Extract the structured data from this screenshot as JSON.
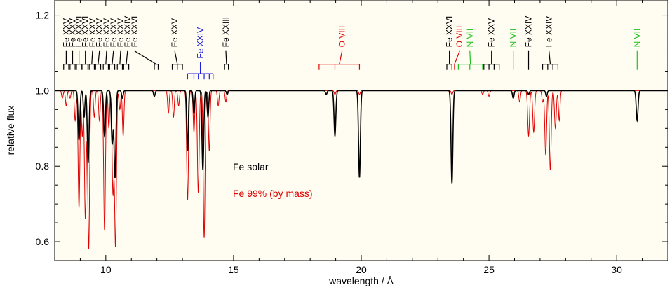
{
  "chart_data": {
    "type": "line",
    "xlabel": "wavelength / Å",
    "ylabel": "relative flux",
    "xlim": [
      8,
      32
    ],
    "ylim": [
      0.55,
      1.24
    ],
    "xticks": [
      10,
      15,
      20,
      25,
      30
    ],
    "xtick_labels": [
      "10",
      "15",
      "20",
      "25",
      "30"
    ],
    "yticks": [
      0.6,
      0.8,
      1.0,
      1.2
    ],
    "ytick_labels": [
      "0.6",
      "0.8",
      "1.0",
      "1.2"
    ],
    "background": "#fffdf2",
    "legend": [
      {
        "text": "Fe solar",
        "color": "#000000"
      },
      {
        "text": "Fe 99% (by mass)",
        "color": "#e00000"
      }
    ],
    "series": [
      {
        "color": "#000000",
        "continuum": 1.0,
        "lines": [
          {
            "x": 8.95,
            "depth": 0.13,
            "w": 0.035
          },
          {
            "x": 9.15,
            "depth": 0.07,
            "w": 0.03
          },
          {
            "x": 9.31,
            "depth": 0.19,
            "w": 0.035
          },
          {
            "x": 9.95,
            "depth": 0.12,
            "w": 0.035
          },
          {
            "x": 10.25,
            "depth": 0.14,
            "w": 0.035
          },
          {
            "x": 10.36,
            "depth": 0.23,
            "w": 0.035
          },
          {
            "x": 10.65,
            "depth": 0.02,
            "w": 0.03
          },
          {
            "x": 11.9,
            "depth": 0.015,
            "w": 0.03
          },
          {
            "x": 13.2,
            "depth": 0.16,
            "w": 0.03
          },
          {
            "x": 13.45,
            "depth": 0.06,
            "w": 0.03
          },
          {
            "x": 13.8,
            "depth": 0.21,
            "w": 0.035
          },
          {
            "x": 14.0,
            "depth": 0.07,
            "w": 0.03
          },
          {
            "x": 14.75,
            "depth": 0.01,
            "w": 0.03
          },
          {
            "x": 18.63,
            "depth": 0.01,
            "w": 0.03
          },
          {
            "x": 18.97,
            "depth": 0.12,
            "w": 0.035
          },
          {
            "x": 19.93,
            "depth": 0.23,
            "w": 0.035
          },
          {
            "x": 23.55,
            "depth": 0.245,
            "w": 0.035
          },
          {
            "x": 25.95,
            "depth": 0.02,
            "w": 0.03
          },
          {
            "x": 26.55,
            "depth": 0.01,
            "w": 0.03
          },
          {
            "x": 27.25,
            "depth": 0.015,
            "w": 0.03
          },
          {
            "x": 30.8,
            "depth": 0.08,
            "w": 0.035
          }
        ]
      },
      {
        "color": "#e00000",
        "continuum": 1.0,
        "lines": [
          {
            "x": 8.3,
            "depth": 0.02,
            "w": 0.03
          },
          {
            "x": 8.45,
            "depth": 0.04,
            "w": 0.03
          },
          {
            "x": 8.6,
            "depth": 0.02,
            "w": 0.03
          },
          {
            "x": 8.8,
            "depth": 0.08,
            "w": 0.03
          },
          {
            "x": 8.95,
            "depth": 0.31,
            "w": 0.035
          },
          {
            "x": 9.08,
            "depth": 0.12,
            "w": 0.03
          },
          {
            "x": 9.2,
            "depth": 0.34,
            "w": 0.035
          },
          {
            "x": 9.33,
            "depth": 0.42,
            "w": 0.035
          },
          {
            "x": 9.55,
            "depth": 0.07,
            "w": 0.03
          },
          {
            "x": 9.75,
            "depth": 0.08,
            "w": 0.03
          },
          {
            "x": 9.95,
            "depth": 0.37,
            "w": 0.035
          },
          {
            "x": 10.12,
            "depth": 0.1,
            "w": 0.03
          },
          {
            "x": 10.28,
            "depth": 0.27,
            "w": 0.035
          },
          {
            "x": 10.38,
            "depth": 0.41,
            "w": 0.035
          },
          {
            "x": 10.55,
            "depth": 0.05,
            "w": 0.03
          },
          {
            "x": 10.68,
            "depth": 0.12,
            "w": 0.03
          },
          {
            "x": 12.45,
            "depth": 0.06,
            "w": 0.03
          },
          {
            "x": 12.65,
            "depth": 0.07,
            "w": 0.03
          },
          {
            "x": 12.85,
            "depth": 0.04,
            "w": 0.03
          },
          {
            "x": 13.2,
            "depth": 0.29,
            "w": 0.035
          },
          {
            "x": 13.45,
            "depth": 0.11,
            "w": 0.03
          },
          {
            "x": 13.62,
            "depth": 0.27,
            "w": 0.035
          },
          {
            "x": 13.85,
            "depth": 0.39,
            "w": 0.035
          },
          {
            "x": 14.05,
            "depth": 0.16,
            "w": 0.03
          },
          {
            "x": 14.4,
            "depth": 0.04,
            "w": 0.03
          },
          {
            "x": 14.7,
            "depth": 0.03,
            "w": 0.03
          },
          {
            "x": 18.97,
            "depth": 0.01,
            "w": 0.03
          },
          {
            "x": 19.93,
            "depth": 0.01,
            "w": 0.03
          },
          {
            "x": 23.55,
            "depth": 0.01,
            "w": 0.03
          },
          {
            "x": 24.75,
            "depth": 0.01,
            "w": 0.03
          },
          {
            "x": 25.0,
            "depth": 0.015,
            "w": 0.03
          },
          {
            "x": 26.2,
            "depth": 0.03,
            "w": 0.03
          },
          {
            "x": 26.55,
            "depth": 0.12,
            "w": 0.035
          },
          {
            "x": 26.75,
            "depth": 0.11,
            "w": 0.035
          },
          {
            "x": 27.1,
            "depth": 0.03,
            "w": 0.03
          },
          {
            "x": 27.22,
            "depth": 0.17,
            "w": 0.035
          },
          {
            "x": 27.4,
            "depth": 0.21,
            "w": 0.035
          },
          {
            "x": 27.6,
            "depth": 0.1,
            "w": 0.035
          },
          {
            "x": 27.75,
            "depth": 0.08,
            "w": 0.03
          }
        ]
      }
    ],
    "line_id_groups": [
      {
        "label": "Fe XXV",
        "color": "#000000",
        "text_x": 8.45,
        "ticks": [
          8.35,
          8.55
        ]
      },
      {
        "label": "Fe XXV",
        "color": "#000000",
        "text_x": 8.7,
        "ticks": [
          8.6,
          8.8
        ]
      },
      {
        "label": "Fe XXVI",
        "color": "#000000",
        "text_x": 8.95,
        "ticks": [
          8.85,
          9.05
        ]
      },
      {
        "label": "Fe XXVI",
        "color": "#000000",
        "text_x": 9.2,
        "ticks": [
          9.1,
          9.3
        ]
      },
      {
        "label": "Fe XXV",
        "color": "#000000",
        "text_x": 9.48,
        "ticks": [
          9.35,
          9.55
        ]
      },
      {
        "label": "Fe XXV",
        "color": "#000000",
        "text_x": 9.75,
        "ticks": [
          9.6,
          9.8
        ]
      },
      {
        "label": "Fe XXV",
        "color": "#000000",
        "text_x": 10.03,
        "ticks": [
          9.9,
          10.1
        ]
      },
      {
        "label": "Fe XXV",
        "color": "#000000",
        "text_x": 10.3,
        "ticks": [
          10.15,
          10.35
        ]
      },
      {
        "label": "Fe XXV",
        "color": "#000000",
        "text_x": 10.58,
        "ticks": [
          10.45,
          10.65
        ]
      },
      {
        "label": "Fe XXIV",
        "color": "#000000",
        "text_x": 10.85,
        "ticks": [
          10.7,
          10.9
        ]
      },
      {
        "label": "Fe XXVI",
        "color": "#000000",
        "text_x": 11.13,
        "ticks": [
          11.9,
          12.05
        ]
      },
      {
        "label": "Fe XXV",
        "color": "#000000",
        "text_x": 12.7,
        "ticks": [
          12.6,
          12.8,
          13.0
        ]
      },
      {
        "label": "Fe XXIV",
        "color": "#2020e0",
        "text_x": 13.7,
        "ticks": [
          13.2,
          13.45,
          13.62,
          13.85,
          14.05,
          14.2
        ]
      },
      {
        "label": "Fe XXIII",
        "color": "#000000",
        "text_x": 14.7,
        "ticks": [
          14.65,
          14.8
        ]
      },
      {
        "label": "O VIII",
        "color": "#e00000",
        "text_x": 19.25,
        "ticks": [
          18.35,
          18.97,
          19.93
        ]
      },
      {
        "label": "Fe XXVI",
        "color": "#000000",
        "text_x": 23.45,
        "ticks": [
          23.35,
          23.55
        ]
      },
      {
        "label": "O VIII",
        "color": "#e00000",
        "text_x": 23.85,
        "ticks": [
          23.65
        ]
      },
      {
        "label": "N VII",
        "color": "#20c020",
        "text_x": 24.25,
        "ticks": [
          23.8,
          24.25,
          24.75
        ]
      },
      {
        "label": "Fe XXV",
        "color": "#000000",
        "text_x": 25.1,
        "ticks": [
          24.8,
          25.0,
          25.2,
          25.4
        ]
      },
      {
        "label": "N VII",
        "color": "#20c020",
        "text_x": 25.95,
        "ticks": [
          25.95
        ]
      },
      {
        "label": "Fe XXIV",
        "color": "#000000",
        "text_x": 26.55,
        "ticks": [
          26.55
        ]
      },
      {
        "label": "Fe XXIV",
        "color": "#000000",
        "text_x": 27.35,
        "ticks": [
          27.1,
          27.3,
          27.5,
          27.7
        ]
      },
      {
        "label": "N VII",
        "color": "#20c020",
        "text_x": 30.8,
        "ticks": [
          30.8
        ]
      }
    ]
  }
}
